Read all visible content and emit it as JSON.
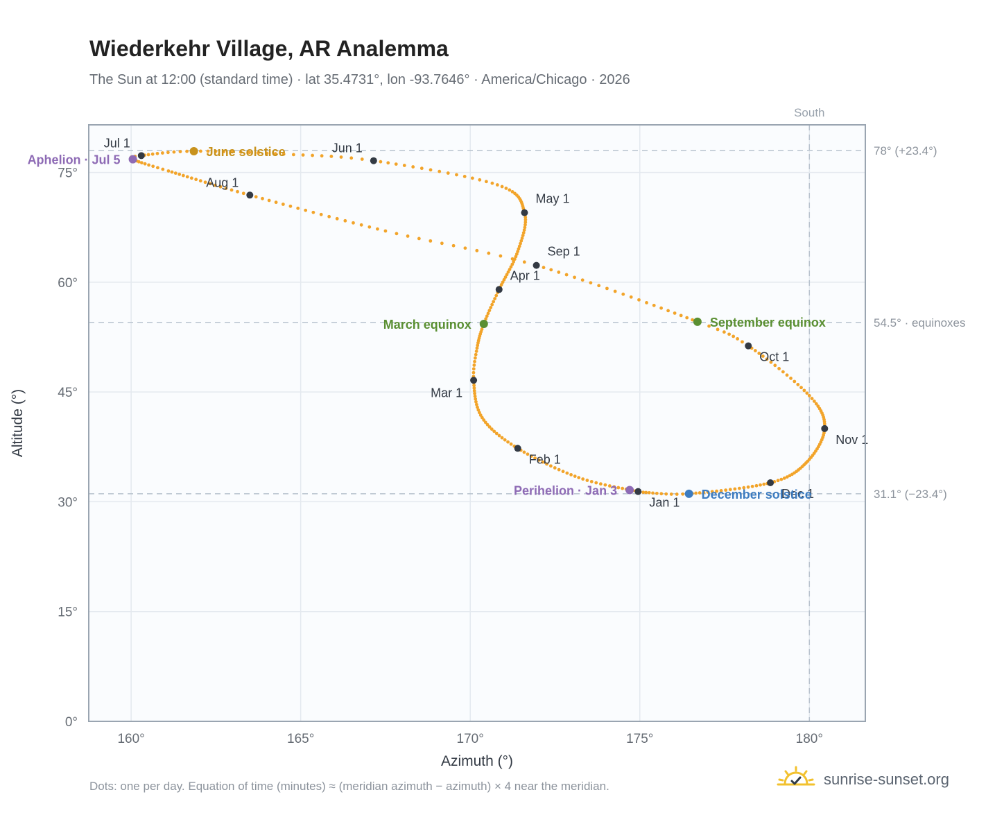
{
  "header": {
    "title": "Wiederkehr Village, AR Analemma",
    "subtitle": "The Sun at 12:00 (standard time) · lat 35.4731°, lon -93.7646° · America/Chicago · 2026"
  },
  "footer": {
    "note": "Dots: one per day. Equation of time (minutes) ≈ (meridian azimuth − azimuth) × 4 near the meridian.",
    "brand": "sunrise-sunset.org",
    "brand_icon": "sun-check-icon"
  },
  "colors": {
    "path": "#f2a42a",
    "month_marker": "#333a44",
    "solstice_june": "#c8921c",
    "solstice_december": "#3d7cc0",
    "equinox": "#5a8f32",
    "apsis": "#8e6bb5",
    "reference_line": "#b8c3ce",
    "plot_background": "#fafcfe",
    "grid": "#e4e9ef",
    "axis": "#9aa5b1"
  },
  "chart_data": {
    "type": "scatter",
    "xlabel": "Azimuth (°)",
    "ylabel": "Altitude (°)",
    "xlim": [
      158.75,
      181.65
    ],
    "ylim": [
      0,
      81.5
    ],
    "x_ticks": [
      160,
      165,
      170,
      175,
      180
    ],
    "x_tick_labels": [
      "160°",
      "165°",
      "170°",
      "175°",
      "180°"
    ],
    "y_ticks": [
      0,
      15,
      30,
      45,
      60,
      75
    ],
    "y_tick_labels": [
      "0°",
      "15°",
      "30°",
      "45°",
      "60°",
      "75°"
    ],
    "grid": true,
    "meridian": {
      "azimuth": 180,
      "label": "South"
    },
    "reference_lines": [
      {
        "altitude": 78.0,
        "label": "78° (+23.4°)"
      },
      {
        "altitude": 54.5,
        "label": "54.5° · equinoxes"
      },
      {
        "altitude": 31.1,
        "label": "31.1° (−23.4°)"
      }
    ],
    "path_anchors": [
      {
        "day": 0,
        "az": 174.95,
        "alt": 31.4
      },
      {
        "day": 15,
        "az": 173.2,
        "alt": 33.3
      },
      {
        "day": 31,
        "az": 171.4,
        "alt": 37.3
      },
      {
        "day": 45,
        "az": 170.35,
        "alt": 41.5
      },
      {
        "day": 59,
        "az": 170.1,
        "alt": 46.6
      },
      {
        "day": 68,
        "az": 170.2,
        "alt": 51.0
      },
      {
        "day": 78,
        "az": 170.4,
        "alt": 54.3
      },
      {
        "day": 90,
        "az": 170.85,
        "alt": 59.0
      },
      {
        "day": 105,
        "az": 171.4,
        "alt": 64.2
      },
      {
        "day": 120,
        "az": 171.6,
        "alt": 69.5
      },
      {
        "day": 135,
        "az": 170.8,
        "alt": 73.3
      },
      {
        "day": 151,
        "az": 167.15,
        "alt": 76.6
      },
      {
        "day": 160,
        "az": 164.5,
        "alt": 77.5
      },
      {
        "day": 171,
        "az": 161.85,
        "alt": 77.9
      },
      {
        "day": 181,
        "az": 160.3,
        "alt": 77.3
      },
      {
        "day": 185,
        "az": 160.05,
        "alt": 76.8
      },
      {
        "day": 195,
        "az": 161.1,
        "alt": 75.2
      },
      {
        "day": 212,
        "az": 163.5,
        "alt": 71.9
      },
      {
        "day": 230,
        "az": 167.5,
        "alt": 67.0
      },
      {
        "day": 243,
        "az": 171.95,
        "alt": 62.3
      },
      {
        "day": 265,
        "az": 176.7,
        "alt": 54.6
      },
      {
        "day": 273,
        "az": 178.2,
        "alt": 51.3
      },
      {
        "day": 290,
        "az": 180.0,
        "alt": 44.5
      },
      {
        "day": 304,
        "az": 180.45,
        "alt": 40.0
      },
      {
        "day": 320,
        "az": 179.9,
        "alt": 35.3
      },
      {
        "day": 334,
        "az": 178.85,
        "alt": 32.6
      },
      {
        "day": 354,
        "az": 176.45,
        "alt": 31.1
      },
      {
        "day": 364,
        "az": 175.1,
        "alt": 31.3
      }
    ],
    "month_markers": [
      {
        "label": "Jan 1",
        "az": 174.95,
        "alt": 31.4,
        "label_pos": "below-right"
      },
      {
        "label": "Feb 1",
        "az": 171.4,
        "alt": 37.3,
        "label_pos": "below-right"
      },
      {
        "label": "Mar 1",
        "az": 170.1,
        "alt": 46.6,
        "label_pos": "below-left"
      },
      {
        "label": "Apr 1",
        "az": 170.85,
        "alt": 59.0,
        "label_pos": "above-right"
      },
      {
        "label": "May 1",
        "az": 171.6,
        "alt": 69.5,
        "label_pos": "above-right"
      },
      {
        "label": "Jun 1",
        "az": 167.15,
        "alt": 76.6,
        "label_pos": "above-left"
      },
      {
        "label": "Jul 1",
        "az": 160.3,
        "alt": 77.3,
        "label_pos": "above-left"
      },
      {
        "label": "Aug 1",
        "az": 163.5,
        "alt": 71.9,
        "label_pos": "above-left"
      },
      {
        "label": "Sep 1",
        "az": 171.95,
        "alt": 62.3,
        "label_pos": "above-right"
      },
      {
        "label": "Oct 1",
        "az": 178.2,
        "alt": 51.3,
        "label_pos": "below-right"
      },
      {
        "label": "Nov 1",
        "az": 180.45,
        "alt": 40.0,
        "label_pos": "below-right"
      },
      {
        "label": "Dec 1",
        "az": 178.85,
        "alt": 32.6,
        "label_pos": "below-right"
      }
    ],
    "events": [
      {
        "label": "June solstice",
        "az": 161.85,
        "alt": 77.9,
        "color": "#c8921c",
        "label_pos": "right"
      },
      {
        "label": "December solstice",
        "az": 176.45,
        "alt": 31.1,
        "color": "#3d7cc0",
        "label_pos": "right"
      },
      {
        "label": "March equinox",
        "az": 170.4,
        "alt": 54.3,
        "color": "#5a8f32",
        "label_pos": "left"
      },
      {
        "label": "September equinox",
        "az": 176.7,
        "alt": 54.6,
        "color": "#5a8f32",
        "label_pos": "right"
      },
      {
        "label": "Aphelion · Jul 5",
        "az": 160.05,
        "alt": 76.8,
        "color": "#8e6bb5",
        "label_pos": "left"
      },
      {
        "label": "Perihelion · Jan 3",
        "az": 174.7,
        "alt": 31.6,
        "color": "#8e6bb5",
        "label_pos": "left"
      }
    ]
  }
}
